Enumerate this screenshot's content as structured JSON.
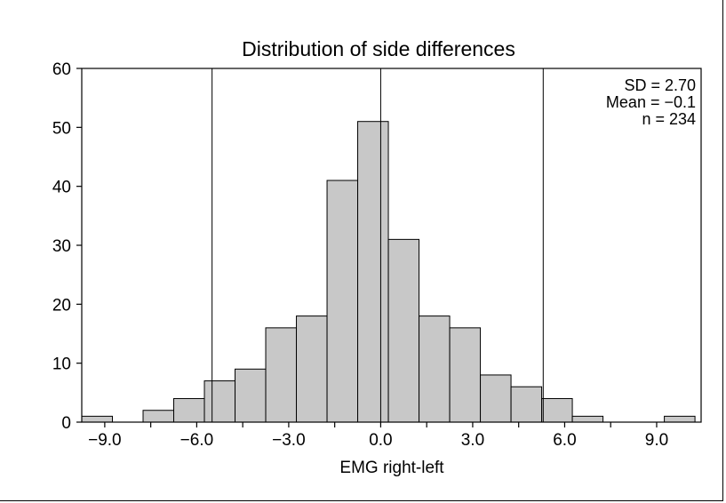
{
  "chart_data": {
    "type": "bar",
    "title": "Distribution of side differences",
    "xlabel": "EMG right-left",
    "ylabel": "",
    "xlim": [
      -9.75,
      10.45
    ],
    "ylim": [
      0,
      60
    ],
    "x_ticks": [
      -9.0,
      -6.0,
      -3.0,
      0.0,
      3.0,
      6.0,
      9.0
    ],
    "x_tick_labels": [
      "−9.0",
      "−6.0",
      "−3.0",
      "0.0",
      "3.0",
      "6.0",
      "9.0"
    ],
    "y_ticks": [
      0,
      10,
      20,
      30,
      40,
      50,
      60
    ],
    "y_tick_labels": [
      "0",
      "10",
      "20",
      "30",
      "40",
      "50",
      "60"
    ],
    "bin_width": 1.0,
    "bin_centers": [
      -9.25,
      -8.25,
      -7.25,
      -6.25,
      -5.25,
      -4.25,
      -3.25,
      -2.25,
      -1.25,
      -0.25,
      0.75,
      1.75,
      2.75,
      3.75,
      4.75,
      5.75,
      6.75,
      7.75,
      8.75,
      9.75
    ],
    "values": [
      1,
      0,
      2,
      4,
      7,
      9,
      16,
      18,
      41,
      51,
      31,
      18,
      16,
      8,
      6,
      4,
      1,
      0,
      0,
      1
    ],
    "vertical_lines": [
      -5.5,
      0.0,
      5.3
    ],
    "annotations": [
      "SD = 2.70",
      "Mean = −0.1",
      "n = 234"
    ],
    "bar_color": "#c8c8c8",
    "edge_color": "#000000",
    "grid": false
  }
}
